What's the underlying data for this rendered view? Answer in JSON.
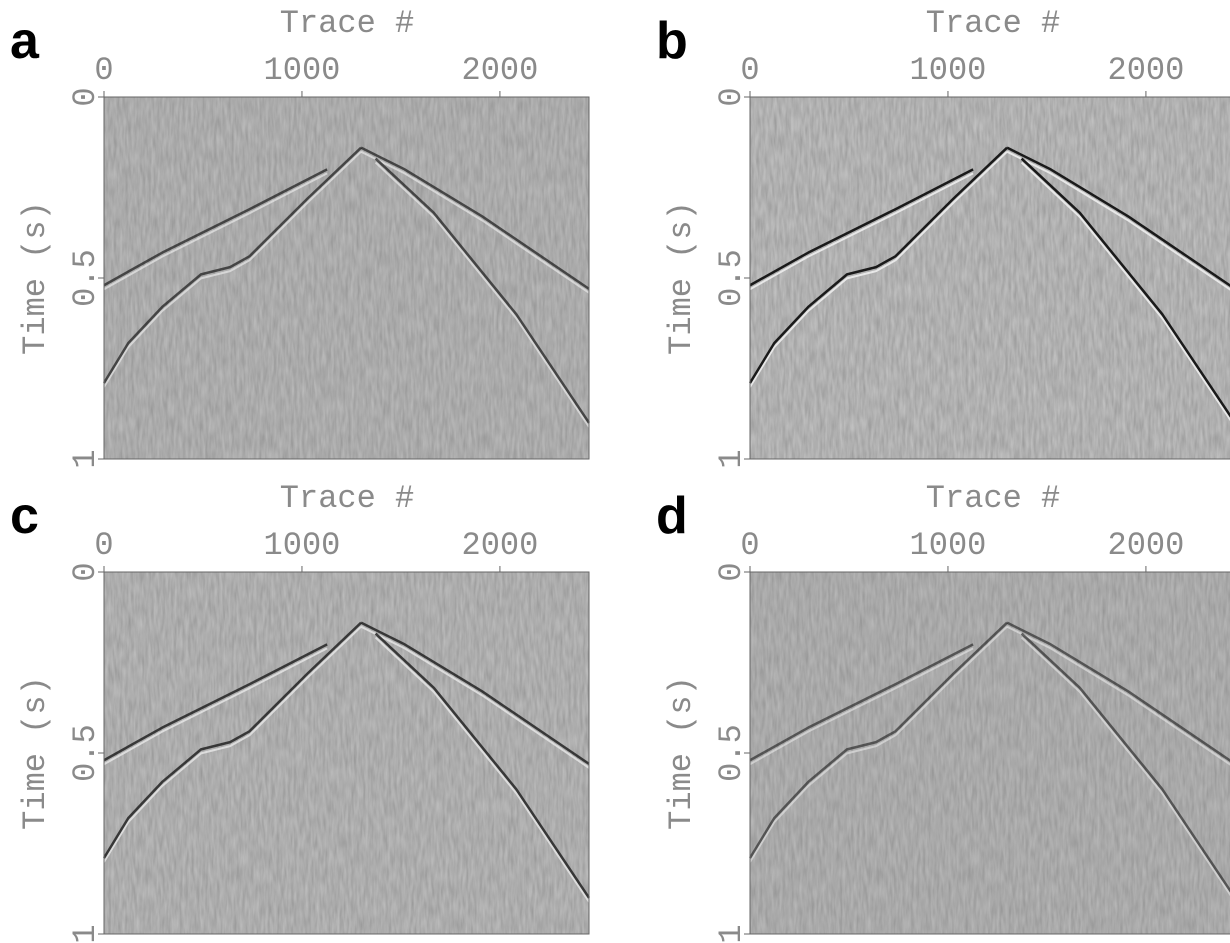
{
  "chart_data": [
    {
      "type": "image",
      "panel": "a",
      "xlabel": "Trace #",
      "ylabel": "Time (s)",
      "xlim": [
        0,
        2450
      ],
      "ylim": [
        0,
        1
      ],
      "xticks": [
        0,
        1000,
        2000
      ],
      "yticks": [
        0,
        0.5,
        1
      ]
    },
    {
      "type": "image",
      "panel": "b",
      "xlabel": "Trace #",
      "ylabel": "Time (s)",
      "xlim": [
        0,
        2450
      ],
      "ylim": [
        0,
        1
      ],
      "xticks": [
        0,
        1000,
        2000
      ],
      "yticks": [
        0,
        0.5,
        1
      ]
    },
    {
      "type": "image",
      "panel": "c",
      "xlabel": "Trace #",
      "ylabel": "Time (s)",
      "xlim": [
        0,
        2450
      ],
      "ylim": [
        0,
        1
      ],
      "xticks": [
        0,
        1000,
        2000
      ],
      "yticks": [
        0,
        0.5,
        1
      ]
    },
    {
      "type": "image",
      "panel": "d",
      "xlabel": "Trace #",
      "ylabel": "Time (s)",
      "xlim": [
        0,
        2450
      ],
      "ylim": [
        0,
        1
      ],
      "xticks": [
        0,
        1000,
        2000
      ],
      "yticks": [
        0,
        0.5,
        1
      ]
    }
  ]
}
